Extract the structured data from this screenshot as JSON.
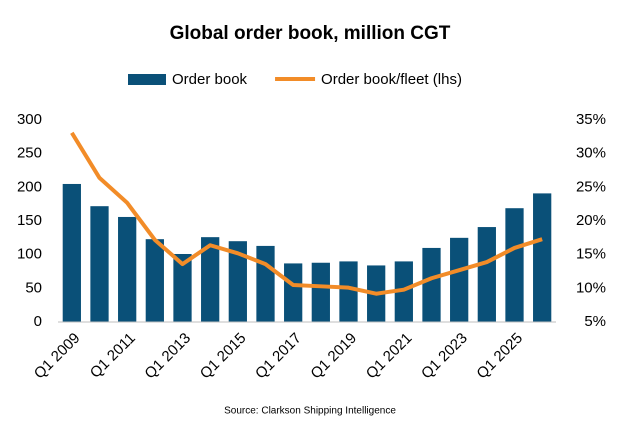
{
  "chart_data": {
    "type": "bar-line",
    "title": "Global order book, million CGT",
    "source": "Source: Clarkson Shipping Intelligence",
    "categories": [
      "Q1 2009",
      null,
      "Q1 2011",
      null,
      "Q1 2013",
      null,
      "Q1 2015",
      null,
      "Q1 2017",
      null,
      "Q1 2019",
      null,
      "Q1 2021",
      null,
      "Q1 2023",
      null,
      "Q1 2025",
      null
    ],
    "series": [
      {
        "name": "Order book",
        "type": "bar",
        "color": "#0a5078",
        "values": [
          205,
          172,
          156,
          123,
          101,
          126,
          120,
          113,
          87,
          88,
          90,
          84,
          90,
          110,
          125,
          141,
          169,
          191
        ]
      },
      {
        "name": "Order book/fleet (lhs)",
        "type": "line",
        "axis": "y2",
        "color": "#f28c28",
        "values": [
          33.1,
          26.4,
          22.7,
          17.2,
          13.6,
          16.4,
          15.2,
          13.6,
          10.5,
          10.3,
          10.1,
          9.2,
          9.8,
          11.5,
          12.7,
          13.9,
          16.0,
          17.3
        ]
      }
    ],
    "ylim": [
      0,
      300
    ],
    "yticks": [
      0,
      50,
      100,
      150,
      200,
      250,
      300
    ],
    "y2lim": [
      5,
      35
    ],
    "y2ticks": [
      {
        "value": 5,
        "label": "5%"
      },
      {
        "value": 10,
        "label": "10%"
      },
      {
        "value": 15,
        "label": "15%"
      },
      {
        "value": 20,
        "label": "20%"
      },
      {
        "value": 25,
        "label": "25%"
      },
      {
        "value": 30,
        "label": "30%"
      },
      {
        "value": 35,
        "label": "35%"
      }
    ],
    "legend": "top"
  }
}
